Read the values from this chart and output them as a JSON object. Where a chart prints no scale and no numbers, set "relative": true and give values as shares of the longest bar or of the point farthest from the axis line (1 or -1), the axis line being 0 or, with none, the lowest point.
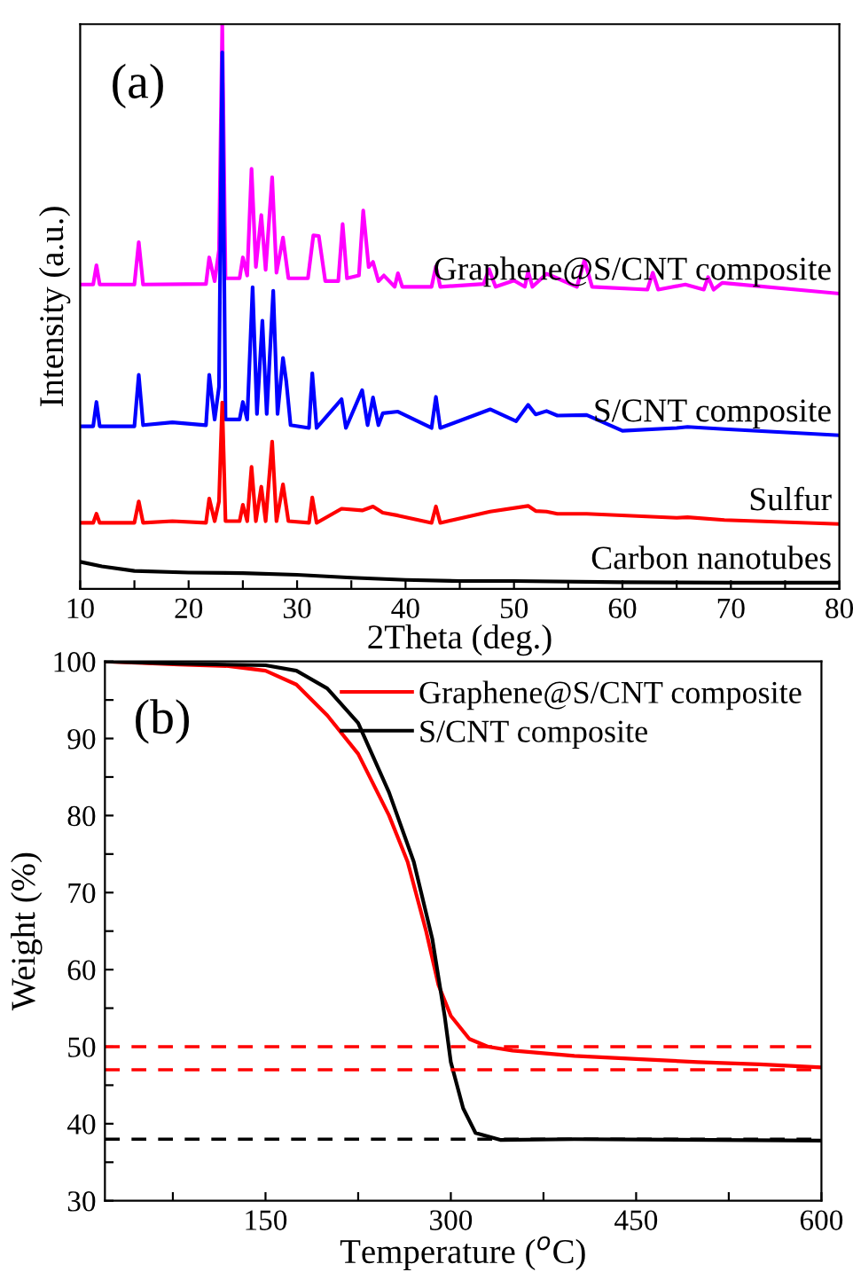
{
  "chart_data": [
    {
      "type": "line",
      "relative": true,
      "xlabel": "2Theta (deg.)",
      "ylabel": "Intensity (a.u.)",
      "xlim": [
        10,
        80
      ],
      "xticks": [
        10,
        {
          "value": 15,
          "label": null
        },
        20,
        {
          "value": 25,
          "label": null
        },
        30,
        {
          "value": 35,
          "label": null
        },
        40,
        {
          "value": 45,
          "label": null
        },
        50,
        {
          "value": 55,
          "label": null
        },
        60,
        {
          "value": 65,
          "label": null
        },
        70,
        {
          "value": 75,
          "label": null
        },
        80
      ],
      "tick_labels": "x",
      "legend": false,
      "grid": false,
      "marker": "none",
      "line_style": "solid",
      "annotations": [
        "(a)"
      ],
      "series": [
        {
          "name": "Graphene@S/CNT composite",
          "color": "#ff00ff",
          "x": [
            10,
            11.2,
            11.5,
            11.8,
            15.0,
            15.4,
            15.8,
            21.6,
            21.9,
            22.4,
            22.8,
            23.1,
            23.4,
            24.7,
            25.0,
            25.4,
            25.8,
            26.2,
            26.7,
            27.1,
            27.7,
            28.1,
            28.7,
            29.2,
            31.0,
            31.5,
            32.0,
            32.6,
            33.8,
            34.2,
            34.6,
            35.7,
            36.1,
            36.6,
            37.0,
            37.5,
            38.0,
            39.0,
            39.3,
            39.7,
            42.4,
            42.8,
            43.2,
            47.2,
            47.7,
            48.3,
            50,
            51.0,
            51.3,
            51.7,
            53.0,
            54.0,
            55.8,
            56.5,
            57.2,
            62.3,
            62.8,
            63.3,
            65.8,
            67.5,
            67.9,
            68.4,
            69.2,
            80
          ],
          "values": [
            0.539,
            0.539,
            0.573,
            0.539,
            0.539,
            0.614,
            0.539,
            0.54,
            0.587,
            0.545,
            0.6,
            1.0,
            0.55,
            0.55,
            0.587,
            0.555,
            0.744,
            0.57,
            0.662,
            0.565,
            0.729,
            0.56,
            0.622,
            0.55,
            0.55,
            0.626,
            0.625,
            0.545,
            0.545,
            0.646,
            0.55,
            0.555,
            0.67,
            0.57,
            0.579,
            0.545,
            0.555,
            0.535,
            0.559,
            0.535,
            0.535,
            0.571,
            0.535,
            0.54,
            0.566,
            0.535,
            0.546,
            0.535,
            0.562,
            0.535,
            0.558,
            0.55,
            0.535,
            0.582,
            0.535,
            0.53,
            0.56,
            0.53,
            0.539,
            0.53,
            0.552,
            0.53,
            0.542,
            0.523
          ]
        },
        {
          "name": "S/CNT composite",
          "color": "#0000ff",
          "x": [
            10,
            11.2,
            11.5,
            11.8,
            15.0,
            15.4,
            15.8,
            18.5,
            21.6,
            21.9,
            22.4,
            22.8,
            23.1,
            23.4,
            24.7,
            25.0,
            25.4,
            25.9,
            26.3,
            26.8,
            27.2,
            27.8,
            28.2,
            28.7,
            29.0,
            29.4,
            31.1,
            31.4,
            31.8,
            34.1,
            34.5,
            36.0,
            36.5,
            37.0,
            37.5,
            37.9,
            39.3,
            42.4,
            42.8,
            43.2,
            47.8,
            50.2,
            51.3,
            52.0,
            53.0,
            54.0,
            56.7,
            60,
            65,
            66,
            69.4,
            80
          ],
          "values": [
            0.288,
            0.288,
            0.331,
            0.288,
            0.288,
            0.379,
            0.29,
            0.295,
            0.29,
            0.379,
            0.3,
            0.358,
            0.95,
            0.3,
            0.3,
            0.331,
            0.3,
            0.534,
            0.31,
            0.475,
            0.31,
            0.528,
            0.31,
            0.409,
            0.368,
            0.29,
            0.285,
            0.382,
            0.285,
            0.336,
            0.285,
            0.352,
            0.29,
            0.339,
            0.29,
            0.311,
            0.314,
            0.285,
            0.34,
            0.285,
            0.318,
            0.297,
            0.326,
            0.309,
            0.315,
            0.307,
            0.308,
            0.28,
            0.285,
            0.287,
            0.283,
            0.272
          ]
        },
        {
          "name": "Sulfur",
          "color": "#ff0000",
          "x": [
            10,
            11.2,
            11.5,
            11.8,
            15.0,
            15.4,
            15.8,
            18.5,
            21.6,
            21.9,
            22.4,
            22.8,
            23.1,
            23.4,
            24.7,
            25.0,
            25.4,
            25.8,
            26.2,
            26.7,
            27.1,
            27.7,
            28.1,
            28.7,
            29.2,
            31.1,
            31.4,
            31.8,
            34.1,
            36.0,
            37.0,
            37.9,
            39.3,
            42.4,
            42.8,
            43.2,
            47.8,
            51.3,
            52.0,
            53.0,
            54.0,
            56.7,
            65,
            66,
            69.4,
            80
          ],
          "values": [
            0.117,
            0.117,
            0.133,
            0.117,
            0.117,
            0.155,
            0.117,
            0.12,
            0.117,
            0.16,
            0.12,
            0.155,
            0.33,
            0.12,
            0.12,
            0.149,
            0.12,
            0.216,
            0.12,
            0.181,
            0.12,
            0.261,
            0.12,
            0.185,
            0.12,
            0.117,
            0.162,
            0.117,
            0.142,
            0.139,
            0.146,
            0.135,
            0.13,
            0.117,
            0.146,
            0.117,
            0.137,
            0.147,
            0.138,
            0.137,
            0.133,
            0.133,
            0.126,
            0.127,
            0.122,
            0.115
          ]
        },
        {
          "name": "Carbon nanotubes",
          "color": "#000000",
          "x": [
            10,
            12,
            15,
            20,
            25,
            30,
            35,
            40,
            45,
            50,
            60,
            70,
            80
          ],
          "values": [
            0.048,
            0.04,
            0.032,
            0.029,
            0.028,
            0.025,
            0.02,
            0.016,
            0.014,
            0.014,
            0.012,
            0.011,
            0.011
          ]
        }
      ]
    },
    {
      "type": "line",
      "xlabel": "Temperature ($^{o}$C)",
      "ylabel": "Weight (%)",
      "xlim": [
        20,
        600
      ],
      "ylim": [
        30,
        100
      ],
      "xticks": [
        {
          "value": 75,
          "label": null
        },
        150,
        {
          "value": 225,
          "label": null
        },
        300,
        {
          "value": 375,
          "label": null
        },
        450,
        {
          "value": 525,
          "label": null
        },
        600
      ],
      "yticks": [
        30,
        {
          "value": 35,
          "label": null
        },
        40,
        {
          "value": 45,
          "label": null
        },
        50,
        {
          "value": 55,
          "label": null
        },
        60,
        {
          "value": 65,
          "label": null
        },
        70,
        {
          "value": 75,
          "label": null
        },
        80,
        {
          "value": 85,
          "label": null
        },
        90,
        {
          "value": 95,
          "label": null
        },
        100
      ],
      "legend": "top right",
      "grid": false,
      "marker": "none",
      "line_style": "solid",
      "annotations": [
        "(b)"
      ],
      "ref_lines": [
        {
          "axis": "y",
          "value": 50,
          "label": null,
          "color": "#ff0000",
          "line_style": "dashed"
        },
        {
          "axis": "y",
          "value": 47,
          "label": null,
          "color": "#ff0000",
          "line_style": "dashed"
        },
        {
          "axis": "y",
          "value": 38,
          "label": null,
          "color": "#000000",
          "line_style": "dashed"
        }
      ],
      "series": [
        {
          "name": "Graphene@S/CNT composite",
          "color": "#ff0000",
          "x": [
            20,
            50,
            80,
            120,
            150,
            175,
            200,
            225,
            250,
            265,
            280,
            290,
            300,
            315,
            330,
            350,
            400,
            450,
            500,
            550,
            600
          ],
          "values": [
            100,
            99.8,
            99.6,
            99.4,
            98.8,
            97,
            93,
            88,
            80,
            74,
            65,
            58,
            54,
            51,
            50,
            49.5,
            48.8,
            48.4,
            48,
            47.7,
            47.3
          ]
        },
        {
          "name": "S/CNT composite",
          "color": "#000000",
          "x": [
            20,
            80,
            150,
            175,
            200,
            225,
            250,
            270,
            285,
            295,
            300,
            310,
            320,
            340,
            400,
            600
          ],
          "values": [
            100,
            99.7,
            99.5,
            98.8,
            96.5,
            92,
            83,
            74,
            64,
            54,
            48,
            42,
            38.8,
            37.9,
            38,
            37.8
          ]
        }
      ]
    }
  ]
}
